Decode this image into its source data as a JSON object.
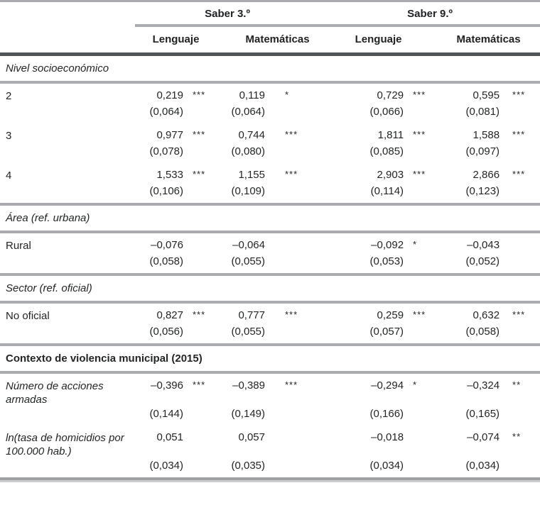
{
  "colors": {
    "rule_gray": "#a9abae",
    "rule_dark": "#515456",
    "rule_bottom_dark": "#9fa1a4",
    "rule_bottom_light": "#cbcdcf",
    "text": "#232527"
  },
  "table": {
    "group_headers": [
      "Saber 3.º",
      "Saber 9.º"
    ],
    "sub_headers": [
      "Lenguaje",
      "Matemáticas",
      "Lenguaje",
      "Matemáticas"
    ],
    "sections": [
      {
        "title": "Nivel socioeconómico",
        "title_style": "italic",
        "rows": [
          {
            "label": "2",
            "label_style": "normal",
            "cols": [
              [
                "0,219",
                "***",
                "(0,064)"
              ],
              [
                "0,119",
                "*",
                "(0,064)"
              ],
              [
                "0,729",
                "***",
                "(0,066)"
              ],
              [
                "0,595",
                "***",
                "(0,081)"
              ]
            ]
          },
          {
            "label": "3",
            "label_style": "normal",
            "cols": [
              [
                "0,977",
                "***",
                "(0,078)"
              ],
              [
                "0,744",
                "***",
                "(0,080)"
              ],
              [
                "1,811",
                "***",
                "(0,085)"
              ],
              [
                "1,588",
                "***",
                "(0,097)"
              ]
            ]
          },
          {
            "label": "4",
            "label_style": "normal",
            "cols": [
              [
                "1,533",
                "***",
                "(0,106)"
              ],
              [
                "1,155",
                "***",
                "(0,109)"
              ],
              [
                "2,903",
                "***",
                "(0,114)"
              ],
              [
                "2,866",
                "***",
                "(0,123)"
              ]
            ]
          }
        ]
      },
      {
        "title": "Área (ref. urbana)",
        "title_style": "italic",
        "rows": [
          {
            "label": "Rural",
            "label_style": "normal",
            "cols": [
              [
                "–0,076",
                "",
                "(0,058)"
              ],
              [
                "–0,064",
                "",
                "(0,055)"
              ],
              [
                "–0,092",
                "*",
                "(0,053)"
              ],
              [
                "–0,043",
                "",
                "(0,052)"
              ]
            ]
          }
        ]
      },
      {
        "title": "Sector (ref. oficial)",
        "title_style": "italic",
        "rows": [
          {
            "label": "No oficial",
            "label_style": "normal",
            "cols": [
              [
                "0,827",
                "***",
                "(0,056)"
              ],
              [
                "0,777",
                "***",
                "(0,055)"
              ],
              [
                "0,259",
                "***",
                "(0,057)"
              ],
              [
                "0,632",
                "***",
                "(0,058)"
              ]
            ]
          }
        ]
      },
      {
        "title": "Contexto de violencia municipal (2015)",
        "title_style": "bold",
        "rows": [
          {
            "label": "Número de acciones armadas",
            "label_style": "italic",
            "cols": [
              [
                "–0,396",
                "***",
                "(0,144)"
              ],
              [
                "–0,389",
                "***",
                "(0,149)"
              ],
              [
                "–0,294",
                "*",
                "(0,166)"
              ],
              [
                "–0,324",
                "**",
                "(0,165)"
              ]
            ]
          },
          {
            "label": "ln(tasa de homicidios por 100.000 hab.)",
            "label_style": "italic",
            "cols": [
              [
                "0,051",
                "",
                "(0,034)"
              ],
              [
                "0,057",
                "",
                "(0,035)"
              ],
              [
                "–0,018",
                "",
                "(0,034)"
              ],
              [
                "–0,074",
                "**",
                "(0,034)"
              ]
            ]
          }
        ]
      }
    ]
  }
}
